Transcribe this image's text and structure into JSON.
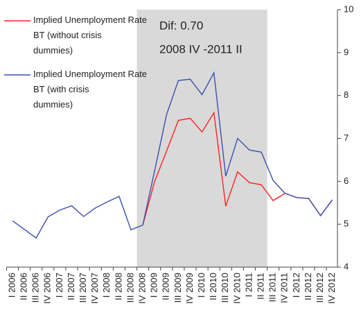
{
  "chart_data": {
    "type": "line",
    "categories": [
      "I 2006",
      "II 2006",
      "III 2006",
      "IV 2006",
      "I 2007",
      "II 2007",
      "III 2007",
      "IV 2007",
      "I 2008",
      "II 2008",
      "III 2008",
      "IV 2008",
      "I 2009",
      "II 2009",
      "III 2009",
      "IV 2009",
      "I 2010",
      "II 2010",
      "III 2010",
      "IV 2010",
      "I 2011",
      "II 2011",
      "III 2011",
      "IV 2011",
      "I 2012",
      "II 2012",
      "III 2012",
      "IV 2012"
    ],
    "series": [
      {
        "name": "Implied Unemployment Rate BT (without crisis dummies)",
        "color": "#ff2020",
        "values": [
          null,
          null,
          null,
          null,
          null,
          null,
          null,
          null,
          null,
          null,
          null,
          4.98,
          6.0,
          6.7,
          7.42,
          7.47,
          7.15,
          7.6,
          5.42,
          6.22,
          5.97,
          5.92,
          5.55,
          5.72,
          5.62,
          5.6,
          5.2,
          5.57
        ]
      },
      {
        "name": "Implied Unemployment Rate BT (with crisis dummies)",
        "color": "#3a4fb0",
        "values": [
          5.08,
          4.88,
          4.68,
          5.17,
          5.33,
          5.43,
          5.18,
          5.38,
          5.52,
          5.65,
          4.87,
          4.98,
          6.25,
          7.55,
          8.35,
          8.38,
          8.02,
          8.53,
          6.12,
          7.0,
          6.73,
          6.68,
          6.02,
          5.72,
          5.62,
          5.6,
          5.2,
          5.57
        ]
      }
    ],
    "annotations": [
      "Dif: 0.70",
      "2008 IV -2011 II"
    ],
    "shaded_range": [
      "IV 2008",
      "II 2011"
    ],
    "ylim": [
      4,
      10
    ],
    "yticks": [
      4,
      5,
      6,
      7,
      8,
      9,
      10
    ],
    "legend": "top-left"
  }
}
